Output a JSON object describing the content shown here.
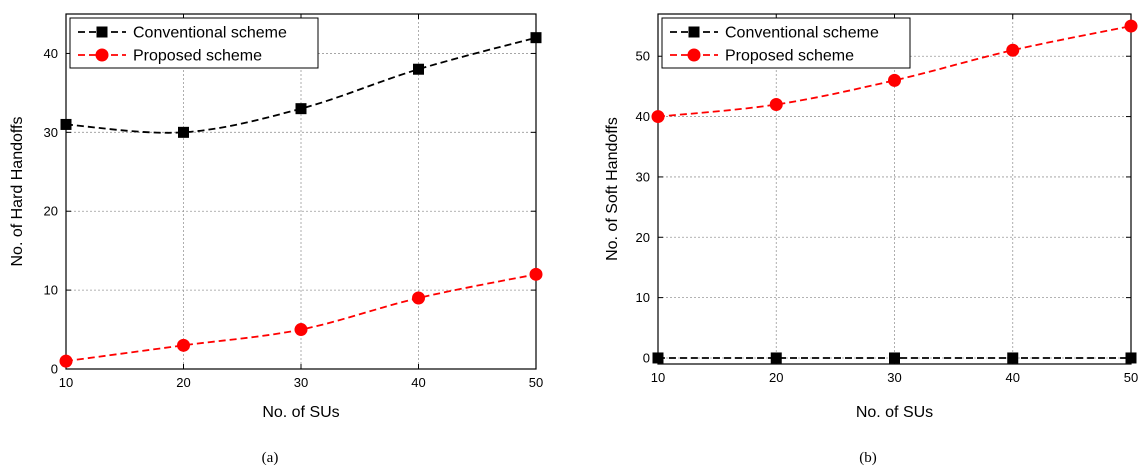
{
  "chart_data": [
    {
      "type": "line",
      "caption": "(a)",
      "xlabel": "No. of SUs",
      "ylabel": "No. of Hard Handoffs",
      "xlim": [
        10,
        50
      ],
      "ylim": [
        0,
        45
      ],
      "xticks": [
        10,
        20,
        30,
        40,
        50
      ],
      "yticks": [
        0,
        10,
        20,
        30,
        40
      ],
      "grid": true,
      "legend_position": "top-left",
      "x": [
        10,
        20,
        30,
        40,
        50
      ],
      "series": [
        {
          "name": "Conventional scheme",
          "values": [
            31,
            30,
            33,
            38,
            42
          ],
          "color": "#000000",
          "marker": "square"
        },
        {
          "name": "Proposed scheme",
          "values": [
            1,
            3,
            5,
            9,
            12
          ],
          "color": "#ff0000",
          "marker": "circle"
        }
      ]
    },
    {
      "type": "line",
      "caption": "(b)",
      "xlabel": "No. of SUs",
      "ylabel": "No. of Soft Handoffs",
      "xlim": [
        10,
        50
      ],
      "ylim": [
        -1,
        57
      ],
      "xticks": [
        10,
        20,
        30,
        40,
        50
      ],
      "yticks": [
        0,
        10,
        20,
        30,
        40,
        50
      ],
      "grid": true,
      "legend_position": "top-left",
      "x": [
        10,
        20,
        30,
        40,
        50
      ],
      "series": [
        {
          "name": "Conventional scheme",
          "values": [
            0,
            0,
            0,
            0,
            0
          ],
          "color": "#000000",
          "marker": "square"
        },
        {
          "name": "Proposed scheme",
          "values": [
            40,
            42,
            46,
            51,
            55
          ],
          "color": "#ff0000",
          "marker": "circle"
        }
      ]
    }
  ]
}
